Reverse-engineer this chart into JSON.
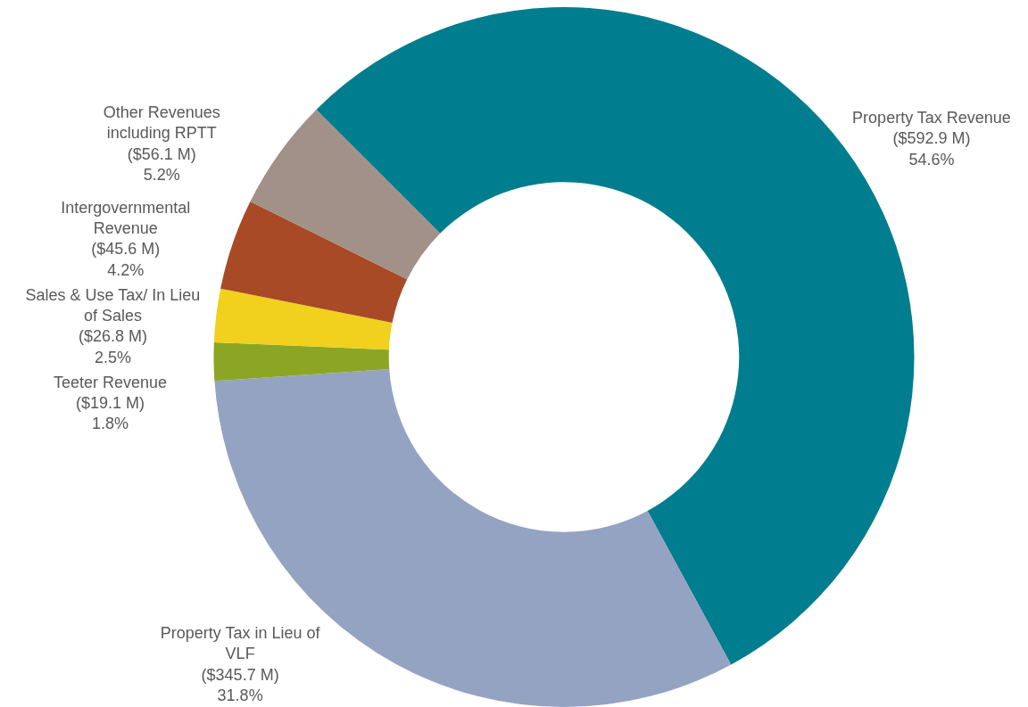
{
  "chart_data": {
    "type": "donut",
    "categories": [
      "Property Tax Revenue",
      "Property Tax in Lieu of VLF",
      "Teeter Revenue",
      "Sales & Use Tax/ In Lieu of Sales",
      "Intergovernmental Revenue",
      "Other Revenues including RPTT"
    ],
    "values": [
      592.9,
      345.7,
      19.1,
      26.8,
      45.6,
      56.1
    ],
    "colors": [
      "#007d8f",
      "#93a3c1",
      "#8ba624",
      "#f1d01e",
      "#a84a25",
      "#a19189"
    ],
    "value_labels": [
      "($592.9 M)\n54.6%",
      "($345.7 M)\n31.8%",
      "($19.1 M)\n1.8%",
      "($26.8 M)\n2.5%",
      "($45.6 M)\n4.2%",
      "($56.1 M)\n5.2%"
    ]
  }
}
